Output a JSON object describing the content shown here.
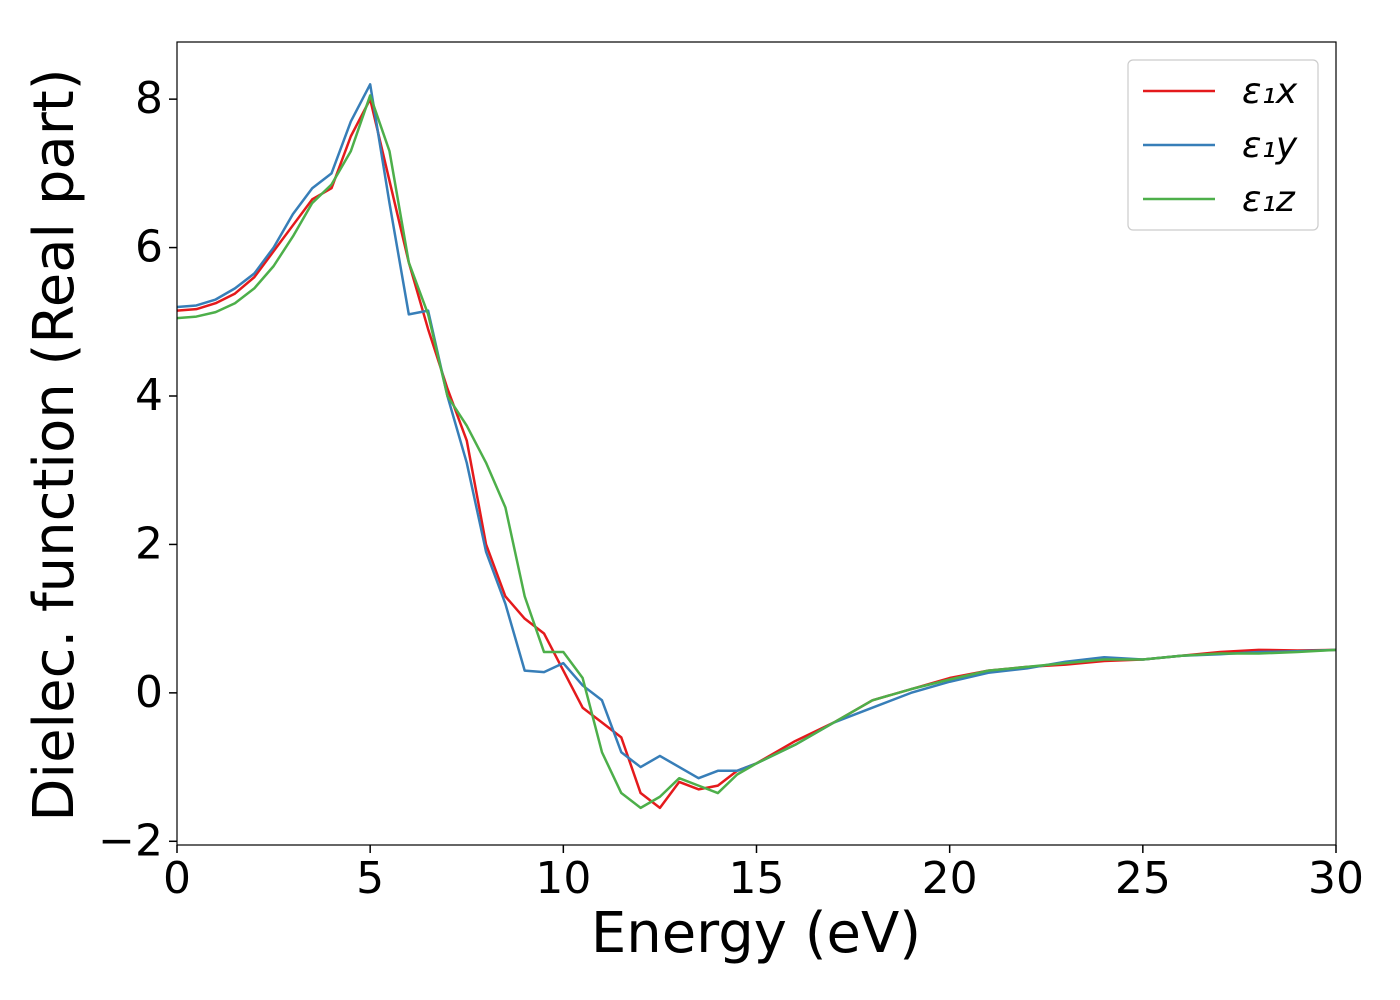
{
  "chart_data": {
    "type": "line",
    "xlabel": "Energy (eV)",
    "ylabel": "Dielec. function (Real part)",
    "x": [
      0,
      0.5,
      1,
      1.5,
      2,
      2.5,
      3,
      3.5,
      4,
      4.5,
      5,
      5.5,
      6,
      6.5,
      7,
      7.5,
      8,
      8.5,
      9,
      9.5,
      10,
      10.5,
      11,
      11.5,
      12,
      12.5,
      13,
      13.5,
      14,
      14.5,
      15,
      16,
      17,
      18,
      19,
      20,
      21,
      22,
      23,
      24,
      25,
      26,
      27,
      28,
      29,
      30
    ],
    "series": [
      {
        "name": "ε₁x",
        "color": "#e41a1c",
        "values": [
          5.15,
          5.17,
          5.25,
          5.38,
          5.6,
          5.95,
          6.3,
          6.65,
          6.8,
          7.5,
          8.0,
          6.9,
          5.8,
          4.9,
          4.1,
          3.4,
          2.0,
          1.3,
          1.0,
          0.8,
          0.3,
          -0.2,
          -0.4,
          -0.6,
          -1.35,
          -1.55,
          -1.2,
          -1.3,
          -1.25,
          -1.05,
          -0.95,
          -0.65,
          -0.4,
          -0.1,
          0.05,
          0.2,
          0.3,
          0.35,
          0.38,
          0.43,
          0.45,
          0.5,
          0.55,
          0.58,
          0.57,
          0.58
        ]
      },
      {
        "name": "ε₁y",
        "color": "#377eb8",
        "values": [
          5.2,
          5.22,
          5.3,
          5.45,
          5.65,
          6.0,
          6.45,
          6.8,
          7.0,
          7.7,
          8.2,
          6.6,
          5.1,
          5.15,
          4.0,
          3.1,
          1.9,
          1.2,
          0.3,
          0.28,
          0.4,
          0.1,
          -0.1,
          -0.8,
          -1.0,
          -0.85,
          -1.0,
          -1.15,
          -1.05,
          -1.05,
          -0.95,
          -0.7,
          -0.4,
          -0.2,
          0.0,
          0.15,
          0.27,
          0.33,
          0.42,
          0.48,
          0.45,
          0.5,
          0.52,
          0.55,
          0.56,
          0.58
        ]
      },
      {
        "name": "ε₁z",
        "color": "#4daf4a",
        "values": [
          5.05,
          5.07,
          5.13,
          5.25,
          5.45,
          5.75,
          6.15,
          6.6,
          6.85,
          7.3,
          8.05,
          7.3,
          5.8,
          5.1,
          4.0,
          3.6,
          3.1,
          2.5,
          1.3,
          0.55,
          0.55,
          0.2,
          -0.8,
          -1.35,
          -1.55,
          -1.4,
          -1.15,
          -1.25,
          -1.35,
          -1.1,
          -0.95,
          -0.7,
          -0.4,
          -0.1,
          0.05,
          0.18,
          0.3,
          0.35,
          0.4,
          0.45,
          0.45,
          0.5,
          0.53,
          0.53,
          0.55,
          0.58
        ]
      }
    ],
    "xlim": [
      0,
      30
    ],
    "xticks": [
      0,
      5,
      10,
      15,
      20,
      25,
      30
    ],
    "ylim": [
      -2.05,
      8.77
    ],
    "yticks": [
      {
        "value": -2,
        "label": "−2"
      },
      0,
      2,
      4,
      6,
      8
    ],
    "grid": false,
    "legend": "upper right"
  }
}
